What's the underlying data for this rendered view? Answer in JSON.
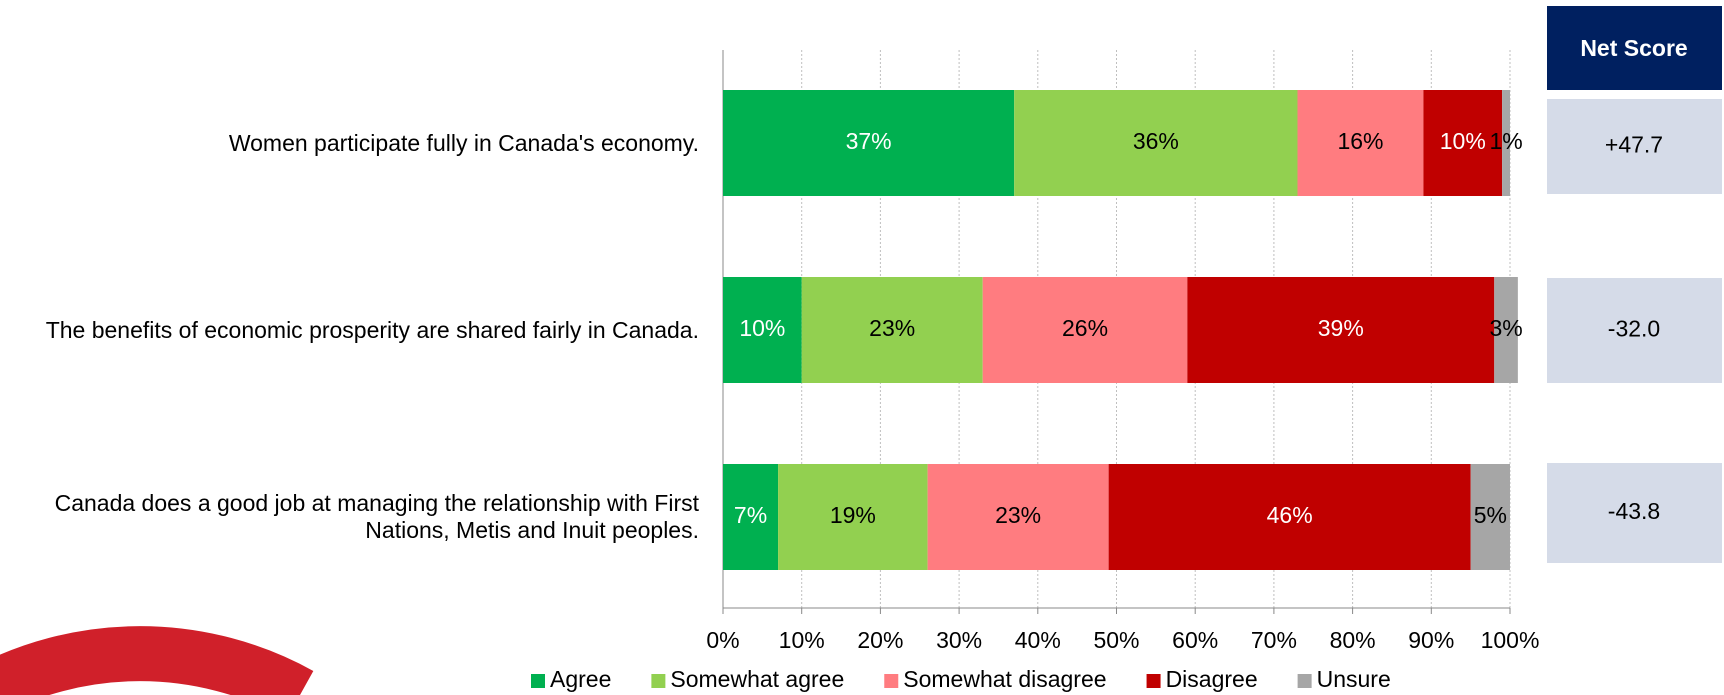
{
  "chart_data": {
    "type": "stacked_barh",
    "categories": [
      "Women participate fully in Canada's economy.",
      "The benefits of economic prosperity are shared fairly in Canada.",
      "Canada does a good job at managing the relationship with First Nations, Metis and Inuit peoples."
    ],
    "series": [
      {
        "name": "Agree",
        "color": "#00b050",
        "values": [
          37,
          10,
          7
        ],
        "value_labels": [
          "37%",
          "10%",
          "7%"
        ]
      },
      {
        "name": "Somewhat agree",
        "color": "#92d050",
        "values": [
          36,
          23,
          19
        ],
        "value_labels": [
          "36%",
          "23%",
          "19%"
        ]
      },
      {
        "name": "Somewhat disagree",
        "color": "#ff7c80",
        "values": [
          16,
          26,
          23
        ],
        "value_labels": [
          "16%",
          "26%",
          "23%"
        ]
      },
      {
        "name": "Disagree",
        "color": "#c00000",
        "values": [
          10,
          39,
          46
        ],
        "value_labels": [
          "10%",
          "39%",
          "46%"
        ]
      },
      {
        "name": "Unsure",
        "color": "#a6a6a6",
        "values": [
          1,
          3,
          5
        ],
        "value_labels": [
          "1%",
          "3%",
          "5%"
        ]
      }
    ],
    "xlim": [
      0,
      100
    ],
    "xticks": [
      {
        "value": 0,
        "label": "0%"
      },
      {
        "value": 10,
        "label": "10%"
      },
      {
        "value": 20,
        "label": "20%"
      },
      {
        "value": 30,
        "label": "30%"
      },
      {
        "value": 40,
        "label": "40%"
      },
      {
        "value": 50,
        "label": "50%"
      },
      {
        "value": 60,
        "label": "60%"
      },
      {
        "value": 70,
        "label": "70%"
      },
      {
        "value": 80,
        "label": "80%"
      },
      {
        "value": 90,
        "label": "90%"
      },
      {
        "value": 100,
        "label": "100%"
      }
    ],
    "grid": true,
    "legend": "bottom",
    "net_score": {
      "title": "Net Score",
      "values": [
        "+47.7",
        "-32.0",
        "-43.8"
      ]
    }
  }
}
